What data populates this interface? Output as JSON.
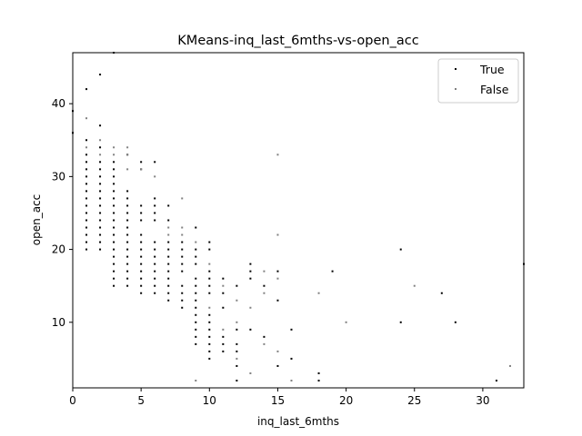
{
  "chart_data": {
    "type": "scatter",
    "title": "KMeans-inq_last_6mths-vs-open_acc",
    "xlabel": "inq_last_6mths",
    "ylabel": "open_acc",
    "xlim": [
      0,
      33
    ],
    "ylim": [
      1,
      47
    ],
    "xticks": [
      0,
      5,
      10,
      15,
      20,
      25,
      30
    ],
    "yticks": [
      10,
      20,
      30,
      40
    ],
    "grid": false,
    "legend_position": "top-right",
    "series": [
      {
        "name": "True",
        "color": "#000000",
        "points": [
          [
            0,
            36
          ],
          [
            0,
            39
          ],
          [
            1,
            42
          ],
          [
            2,
            44
          ],
          [
            3,
            47
          ],
          [
            1,
            35
          ],
          [
            1,
            33
          ],
          [
            1,
            32
          ],
          [
            1,
            31
          ],
          [
            1,
            30
          ],
          [
            1,
            29
          ],
          [
            1,
            28
          ],
          [
            1,
            27
          ],
          [
            1,
            26
          ],
          [
            1,
            25
          ],
          [
            1,
            24
          ],
          [
            1,
            23
          ],
          [
            1,
            22
          ],
          [
            1,
            21
          ],
          [
            1,
            20
          ],
          [
            2,
            37
          ],
          [
            2,
            34
          ],
          [
            2,
            32
          ],
          [
            2,
            31
          ],
          [
            2,
            30
          ],
          [
            2,
            29
          ],
          [
            2,
            28
          ],
          [
            2,
            27
          ],
          [
            2,
            26
          ],
          [
            2,
            25
          ],
          [
            2,
            24
          ],
          [
            2,
            23
          ],
          [
            2,
            22
          ],
          [
            2,
            21
          ],
          [
            2,
            20
          ],
          [
            3,
            32
          ],
          [
            3,
            31
          ],
          [
            3,
            30
          ],
          [
            3,
            29
          ],
          [
            3,
            28
          ],
          [
            3,
            27
          ],
          [
            3,
            26
          ],
          [
            3,
            25
          ],
          [
            3,
            24
          ],
          [
            3,
            23
          ],
          [
            3,
            22
          ],
          [
            3,
            21
          ],
          [
            3,
            20
          ],
          [
            3,
            19
          ],
          [
            3,
            18
          ],
          [
            3,
            17
          ],
          [
            3,
            16
          ],
          [
            3,
            15
          ],
          [
            4,
            33
          ],
          [
            4,
            28
          ],
          [
            4,
            27
          ],
          [
            4,
            26
          ],
          [
            4,
            25
          ],
          [
            4,
            24
          ],
          [
            4,
            23
          ],
          [
            4,
            22
          ],
          [
            4,
            21
          ],
          [
            4,
            20
          ],
          [
            4,
            19
          ],
          [
            4,
            18
          ],
          [
            4,
            17
          ],
          [
            4,
            16
          ],
          [
            4,
            15
          ],
          [
            5,
            32
          ],
          [
            5,
            31
          ],
          [
            5,
            26
          ],
          [
            5,
            25
          ],
          [
            5,
            24
          ],
          [
            5,
            22
          ],
          [
            5,
            21
          ],
          [
            5,
            20
          ],
          [
            5,
            19
          ],
          [
            5,
            18
          ],
          [
            5,
            17
          ],
          [
            5,
            16
          ],
          [
            5,
            15
          ],
          [
            5,
            14
          ],
          [
            6,
            32
          ],
          [
            6,
            27
          ],
          [
            6,
            26
          ],
          [
            6,
            25
          ],
          [
            6,
            24
          ],
          [
            6,
            21
          ],
          [
            6,
            20
          ],
          [
            6,
            19
          ],
          [
            6,
            18
          ],
          [
            6,
            17
          ],
          [
            6,
            16
          ],
          [
            6,
            15
          ],
          [
            6,
            14
          ],
          [
            7,
            26
          ],
          [
            7,
            24
          ],
          [
            7,
            21
          ],
          [
            7,
            20
          ],
          [
            7,
            19
          ],
          [
            7,
            18
          ],
          [
            7,
            17
          ],
          [
            7,
            16
          ],
          [
            7,
            15
          ],
          [
            7,
            14
          ],
          [
            7,
            13
          ],
          [
            8,
            21
          ],
          [
            8,
            20
          ],
          [
            8,
            19
          ],
          [
            8,
            18
          ],
          [
            8,
            17
          ],
          [
            8,
            15
          ],
          [
            8,
            14
          ],
          [
            8,
            13
          ],
          [
            8,
            12
          ],
          [
            9,
            23
          ],
          [
            9,
            20
          ],
          [
            9,
            19
          ],
          [
            9,
            18
          ],
          [
            9,
            16
          ],
          [
            9,
            15
          ],
          [
            9,
            14
          ],
          [
            9,
            13
          ],
          [
            9,
            12
          ],
          [
            9,
            11
          ],
          [
            9,
            10
          ],
          [
            9,
            9
          ],
          [
            9,
            8
          ],
          [
            9,
            7
          ],
          [
            10,
            21
          ],
          [
            10,
            20
          ],
          [
            10,
            17
          ],
          [
            10,
            16
          ],
          [
            10,
            15
          ],
          [
            10,
            14
          ],
          [
            10,
            11
          ],
          [
            10,
            10
          ],
          [
            10,
            9
          ],
          [
            10,
            8
          ],
          [
            10,
            7
          ],
          [
            10,
            6
          ],
          [
            10,
            5
          ],
          [
            11,
            16
          ],
          [
            11,
            14
          ],
          [
            11,
            12
          ],
          [
            11,
            8
          ],
          [
            11,
            7
          ],
          [
            11,
            6
          ],
          [
            12,
            15
          ],
          [
            12,
            9
          ],
          [
            12,
            7
          ],
          [
            12,
            6
          ],
          [
            12,
            4
          ],
          [
            12,
            2
          ],
          [
            13,
            18
          ],
          [
            13,
            17
          ],
          [
            13,
            16
          ],
          [
            13,
            9
          ],
          [
            14,
            15
          ],
          [
            14,
            8
          ],
          [
            15,
            17
          ],
          [
            15,
            13
          ],
          [
            15,
            4
          ],
          [
            16,
            9
          ],
          [
            16,
            5
          ],
          [
            18,
            3
          ],
          [
            18,
            2
          ],
          [
            19,
            17
          ],
          [
            24,
            20
          ],
          [
            24,
            10
          ],
          [
            27,
            14
          ],
          [
            28,
            10
          ],
          [
            31,
            2
          ],
          [
            33,
            18
          ]
        ]
      },
      {
        "name": "False",
        "color": "#808080",
        "points": [
          [
            1,
            38
          ],
          [
            1,
            34
          ],
          [
            2,
            35
          ],
          [
            2,
            33
          ],
          [
            3,
            34
          ],
          [
            3,
            33
          ],
          [
            4,
            34
          ],
          [
            4,
            33
          ],
          [
            4,
            31
          ],
          [
            5,
            31
          ],
          [
            6,
            30
          ],
          [
            8,
            27
          ],
          [
            8,
            23
          ],
          [
            9,
            21
          ],
          [
            11,
            15
          ],
          [
            12,
            13
          ],
          [
            13,
            3
          ],
          [
            14,
            7
          ],
          [
            14,
            14
          ],
          [
            14,
            17
          ],
          [
            15,
            33
          ],
          [
            15,
            22
          ],
          [
            15,
            16
          ],
          [
            15,
            6
          ],
          [
            16,
            2
          ],
          [
            18,
            14
          ],
          [
            20,
            10
          ],
          [
            25,
            15
          ],
          [
            32,
            4
          ],
          [
            7,
            22
          ],
          [
            7,
            23
          ],
          [
            8,
            22
          ],
          [
            10,
            18
          ],
          [
            10,
            12
          ],
          [
            11,
            9
          ],
          [
            12,
            10
          ],
          [
            12,
            5
          ],
          [
            13,
            12
          ],
          [
            9,
            2
          ]
        ]
      }
    ]
  }
}
